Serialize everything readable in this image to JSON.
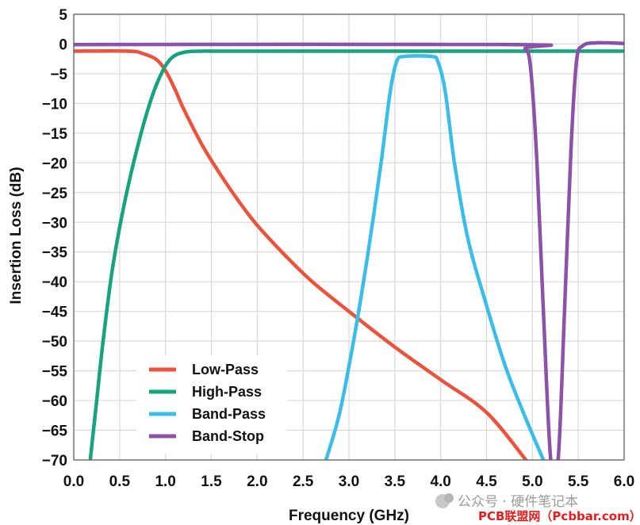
{
  "chart_data": {
    "type": "line",
    "xlabel": "Frequency (GHz)",
    "ylabel": "Insertion Loss (dB)",
    "xlim": [
      0,
      6
    ],
    "ylim": [
      -70,
      5
    ],
    "xticks": [
      "0.0",
      "0.5",
      "1.0",
      "1.5",
      "2.0",
      "2.5",
      "3.0",
      "3.5",
      "4.0",
      "4.5",
      "5.0",
      "5.5",
      "6.0"
    ],
    "yticks": [
      "5",
      "0",
      "-5",
      "-10",
      "-15",
      "-20",
      "-25",
      "-30",
      "-35",
      "-40",
      "-45",
      "-50",
      "-55",
      "-60",
      "-65",
      "-70"
    ],
    "grid": true,
    "legend_position": "bottom-left",
    "series": [
      {
        "name": "Low-Pass",
        "color": "#e8553f",
        "points": [
          [
            0,
            -1.2
          ],
          [
            0.6,
            -1.2
          ],
          [
            0.75,
            -1.6
          ],
          [
            0.9,
            -2.6
          ],
          [
            1.0,
            -4.5
          ],
          [
            1.1,
            -7.5
          ],
          [
            1.2,
            -11
          ],
          [
            1.4,
            -17
          ],
          [
            1.6,
            -22
          ],
          [
            1.8,
            -26.5
          ],
          [
            2.0,
            -30.5
          ],
          [
            2.3,
            -35.5
          ],
          [
            2.6,
            -40
          ],
          [
            3.0,
            -45
          ],
          [
            3.5,
            -51
          ],
          [
            4.0,
            -56.5
          ],
          [
            4.5,
            -62
          ],
          [
            4.93,
            -70
          ]
        ]
      },
      {
        "name": "High-Pass",
        "color": "#17a37c",
        "points": [
          [
            0.18,
            -70
          ],
          [
            0.25,
            -60
          ],
          [
            0.32,
            -50
          ],
          [
            0.42,
            -38
          ],
          [
            0.55,
            -27
          ],
          [
            0.7,
            -17
          ],
          [
            0.85,
            -9
          ],
          [
            0.97,
            -4.5
          ],
          [
            1.07,
            -2.3
          ],
          [
            1.2,
            -1.4
          ],
          [
            1.4,
            -1.2
          ],
          [
            2.0,
            -1.2
          ],
          [
            6.0,
            -1.2
          ]
        ]
      },
      {
        "name": "Band-Pass",
        "color": "#3bbde6",
        "points": [
          [
            2.75,
            -70
          ],
          [
            2.9,
            -62
          ],
          [
            3.05,
            -50
          ],
          [
            3.2,
            -36
          ],
          [
            3.35,
            -20
          ],
          [
            3.45,
            -8
          ],
          [
            3.52,
            -3
          ],
          [
            3.6,
            -2.1
          ],
          [
            3.9,
            -2.1
          ],
          [
            3.97,
            -3
          ],
          [
            4.05,
            -8
          ],
          [
            4.15,
            -20
          ],
          [
            4.3,
            -33
          ],
          [
            4.5,
            -44
          ],
          [
            4.7,
            -54
          ],
          [
            4.9,
            -62
          ],
          [
            5.12,
            -70
          ]
        ]
      },
      {
        "name": "Band-Stop",
        "color": "#8b52a8",
        "points": [
          [
            0,
            -0.1
          ],
          [
            4.82,
            -0.1
          ],
          [
            4.92,
            -0.8
          ],
          [
            4.98,
            -4
          ],
          [
            5.05,
            -20
          ],
          [
            5.12,
            -45
          ],
          [
            5.2,
            -70
          ],
          [
            5.28,
            -70
          ],
          [
            5.35,
            -45
          ],
          [
            5.42,
            -18
          ],
          [
            5.48,
            -3
          ],
          [
            5.55,
            -0.3
          ],
          [
            5.7,
            0.2
          ],
          [
            6.0,
            0.1
          ]
        ]
      }
    ]
  },
  "watermark": {
    "line1": "公众号 · 硬件笔记本",
    "line2": "PCB联盟网（Pcbbar.com）"
  }
}
